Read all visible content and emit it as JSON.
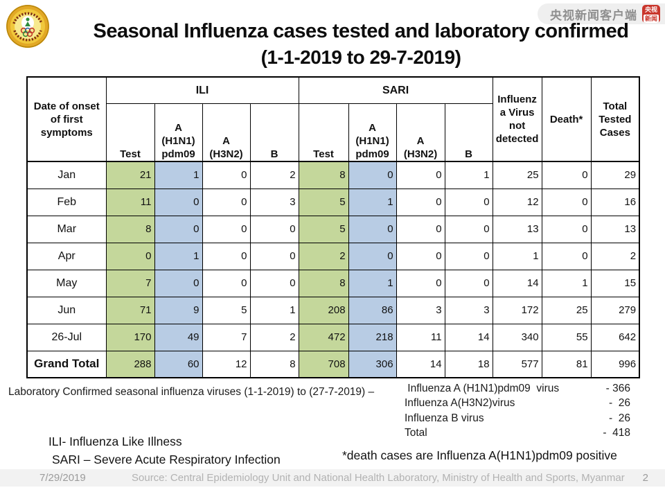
{
  "watermark": {
    "text": "央视新闻客户端",
    "icon_top": "央视",
    "icon_bottom": "新闻"
  },
  "title": {
    "line1": "Seasonal Influenza cases tested and laboratory confirmed",
    "line2": "(1-1-2019 to 29-7-2019)"
  },
  "table": {
    "corner_header": "Date of onset of first symptoms",
    "groups": [
      {
        "label": "ILI"
      },
      {
        "label": "SARI"
      }
    ],
    "sub_headers": [
      "Test",
      "A (H1N1) pdm09",
      "A (H3N2)",
      "B",
      "Test",
      "A (H1N1) pdm09",
      "A (H3N2)",
      "B"
    ],
    "tail_headers": [
      "Influenza Virus not detected",
      "Death*",
      "Total Tested Cases"
    ],
    "rows": [
      {
        "label": "Jan",
        "values": [
          21,
          1,
          0,
          2,
          8,
          0,
          0,
          1,
          25,
          0,
          29
        ]
      },
      {
        "label": "Feb",
        "values": [
          11,
          0,
          0,
          3,
          5,
          1,
          0,
          0,
          12,
          0,
          16
        ]
      },
      {
        "label": "Mar",
        "values": [
          8,
          0,
          0,
          0,
          5,
          0,
          0,
          0,
          13,
          0,
          13
        ]
      },
      {
        "label": "Apr",
        "values": [
          0,
          1,
          0,
          0,
          2,
          0,
          0,
          0,
          1,
          0,
          2
        ]
      },
      {
        "label": "May",
        "values": [
          7,
          0,
          0,
          0,
          8,
          1,
          0,
          0,
          14,
          1,
          15
        ]
      },
      {
        "label": "Jun",
        "values": [
          71,
          9,
          5,
          1,
          208,
          86,
          3,
          3,
          172,
          25,
          279
        ]
      },
      {
        "label": "26-Jul",
        "values": [
          170,
          49,
          7,
          2,
          472,
          218,
          11,
          14,
          340,
          55,
          642
        ]
      },
      {
        "label": "Grand Total",
        "values": [
          288,
          60,
          12,
          8,
          708,
          306,
          14,
          18,
          577,
          81,
          996
        ],
        "bold": true
      }
    ],
    "colors": {
      "test_fill": "#C4D79B",
      "h1n1_fill": "#B8CCE4"
    }
  },
  "summary": {
    "intro": "Laboratory Confirmed seasonal influenza viruses (1-1-2019) to (27-7-2019) –",
    "items": [
      {
        "label": " Influenza A (H1N1)pdm09  virus",
        "value": "- 366"
      },
      {
        "label": "Influenza A(H3N2)virus",
        "value": "-  26"
      },
      {
        "label": "Influenza B virus",
        "value": "-  26"
      },
      {
        "label": "Total",
        "value": "-  418"
      }
    ]
  },
  "notes": {
    "ili": "ILI- Influenza Like Illness",
    "sari": "SARI – Severe Acute Respiratory Infection",
    "death": "*death cases are Influenza A(H1N1)pdm09 positive"
  },
  "footer": {
    "date": "7/29/2019",
    "source": "Source: Central Epidemiology Unit and National Health Laboratory, Ministry of Health and Sports, Myanmar",
    "page": "2"
  }
}
